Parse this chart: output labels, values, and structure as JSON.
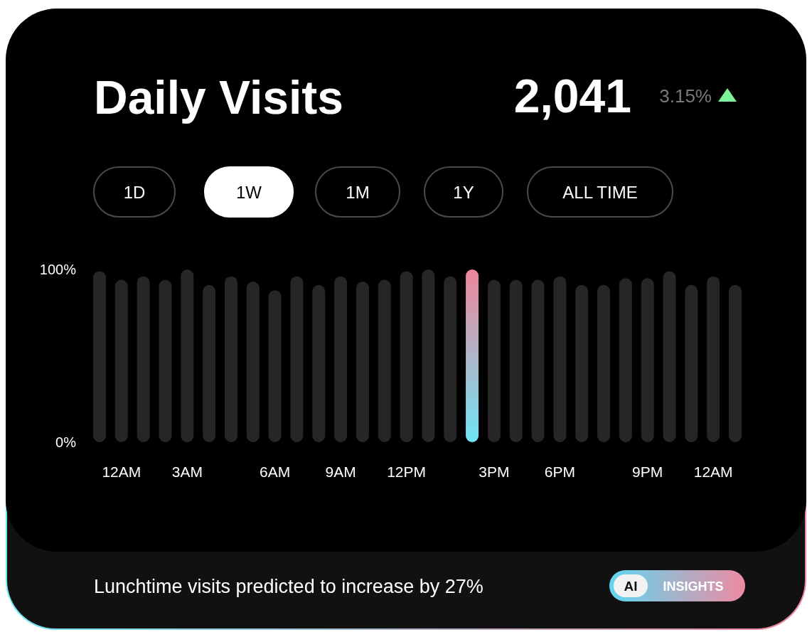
{
  "chart_data": {
    "type": "bar",
    "title": "Daily Visits",
    "categories": [
      null,
      "12AM",
      null,
      null,
      "3AM",
      null,
      null,
      null,
      "6AM",
      null,
      null,
      "9AM",
      null,
      null,
      "12PM",
      null,
      null,
      null,
      "3PM",
      null,
      null,
      "6PM",
      null,
      null,
      null,
      "9PM",
      null,
      null,
      "12AM",
      null
    ],
    "values": [
      99,
      94,
      96,
      94,
      100,
      91,
      96,
      93,
      88,
      96,
      91,
      96,
      93,
      94,
      99,
      100,
      96,
      100,
      94,
      94,
      94,
      96,
      91,
      91,
      95,
      95,
      99,
      91,
      96,
      91
    ],
    "colors": [
      "#262626",
      "#262626",
      "#262626",
      "#262626",
      "#262626",
      "#262626",
      "#262626",
      "#262626",
      "#262626",
      "#262626",
      "#262626",
      "#262626",
      "#262626",
      "#262626",
      "#262626",
      "#262626",
      "#262626",
      "#f0849a",
      "#262626",
      "#262626",
      "#262626",
      "#262626",
      "#262626",
      "#262626",
      "#262626",
      "#262626",
      "#262626",
      "#262626",
      "#262626",
      "#262626"
    ],
    "ylim": [
      0,
      100
    ],
    "yticks": [
      {
        "value": 0,
        "label": "0%"
      },
      {
        "value": 100,
        "label": "100%"
      }
    ],
    "annotations": [
      "2,041",
      "3.15%",
      "1D",
      "1W",
      "1M",
      "1Y",
      "ALL TIME",
      "Lunchtime visits predicted to increase by 27%",
      "AI",
      "INSIGHTS"
    ]
  }
}
